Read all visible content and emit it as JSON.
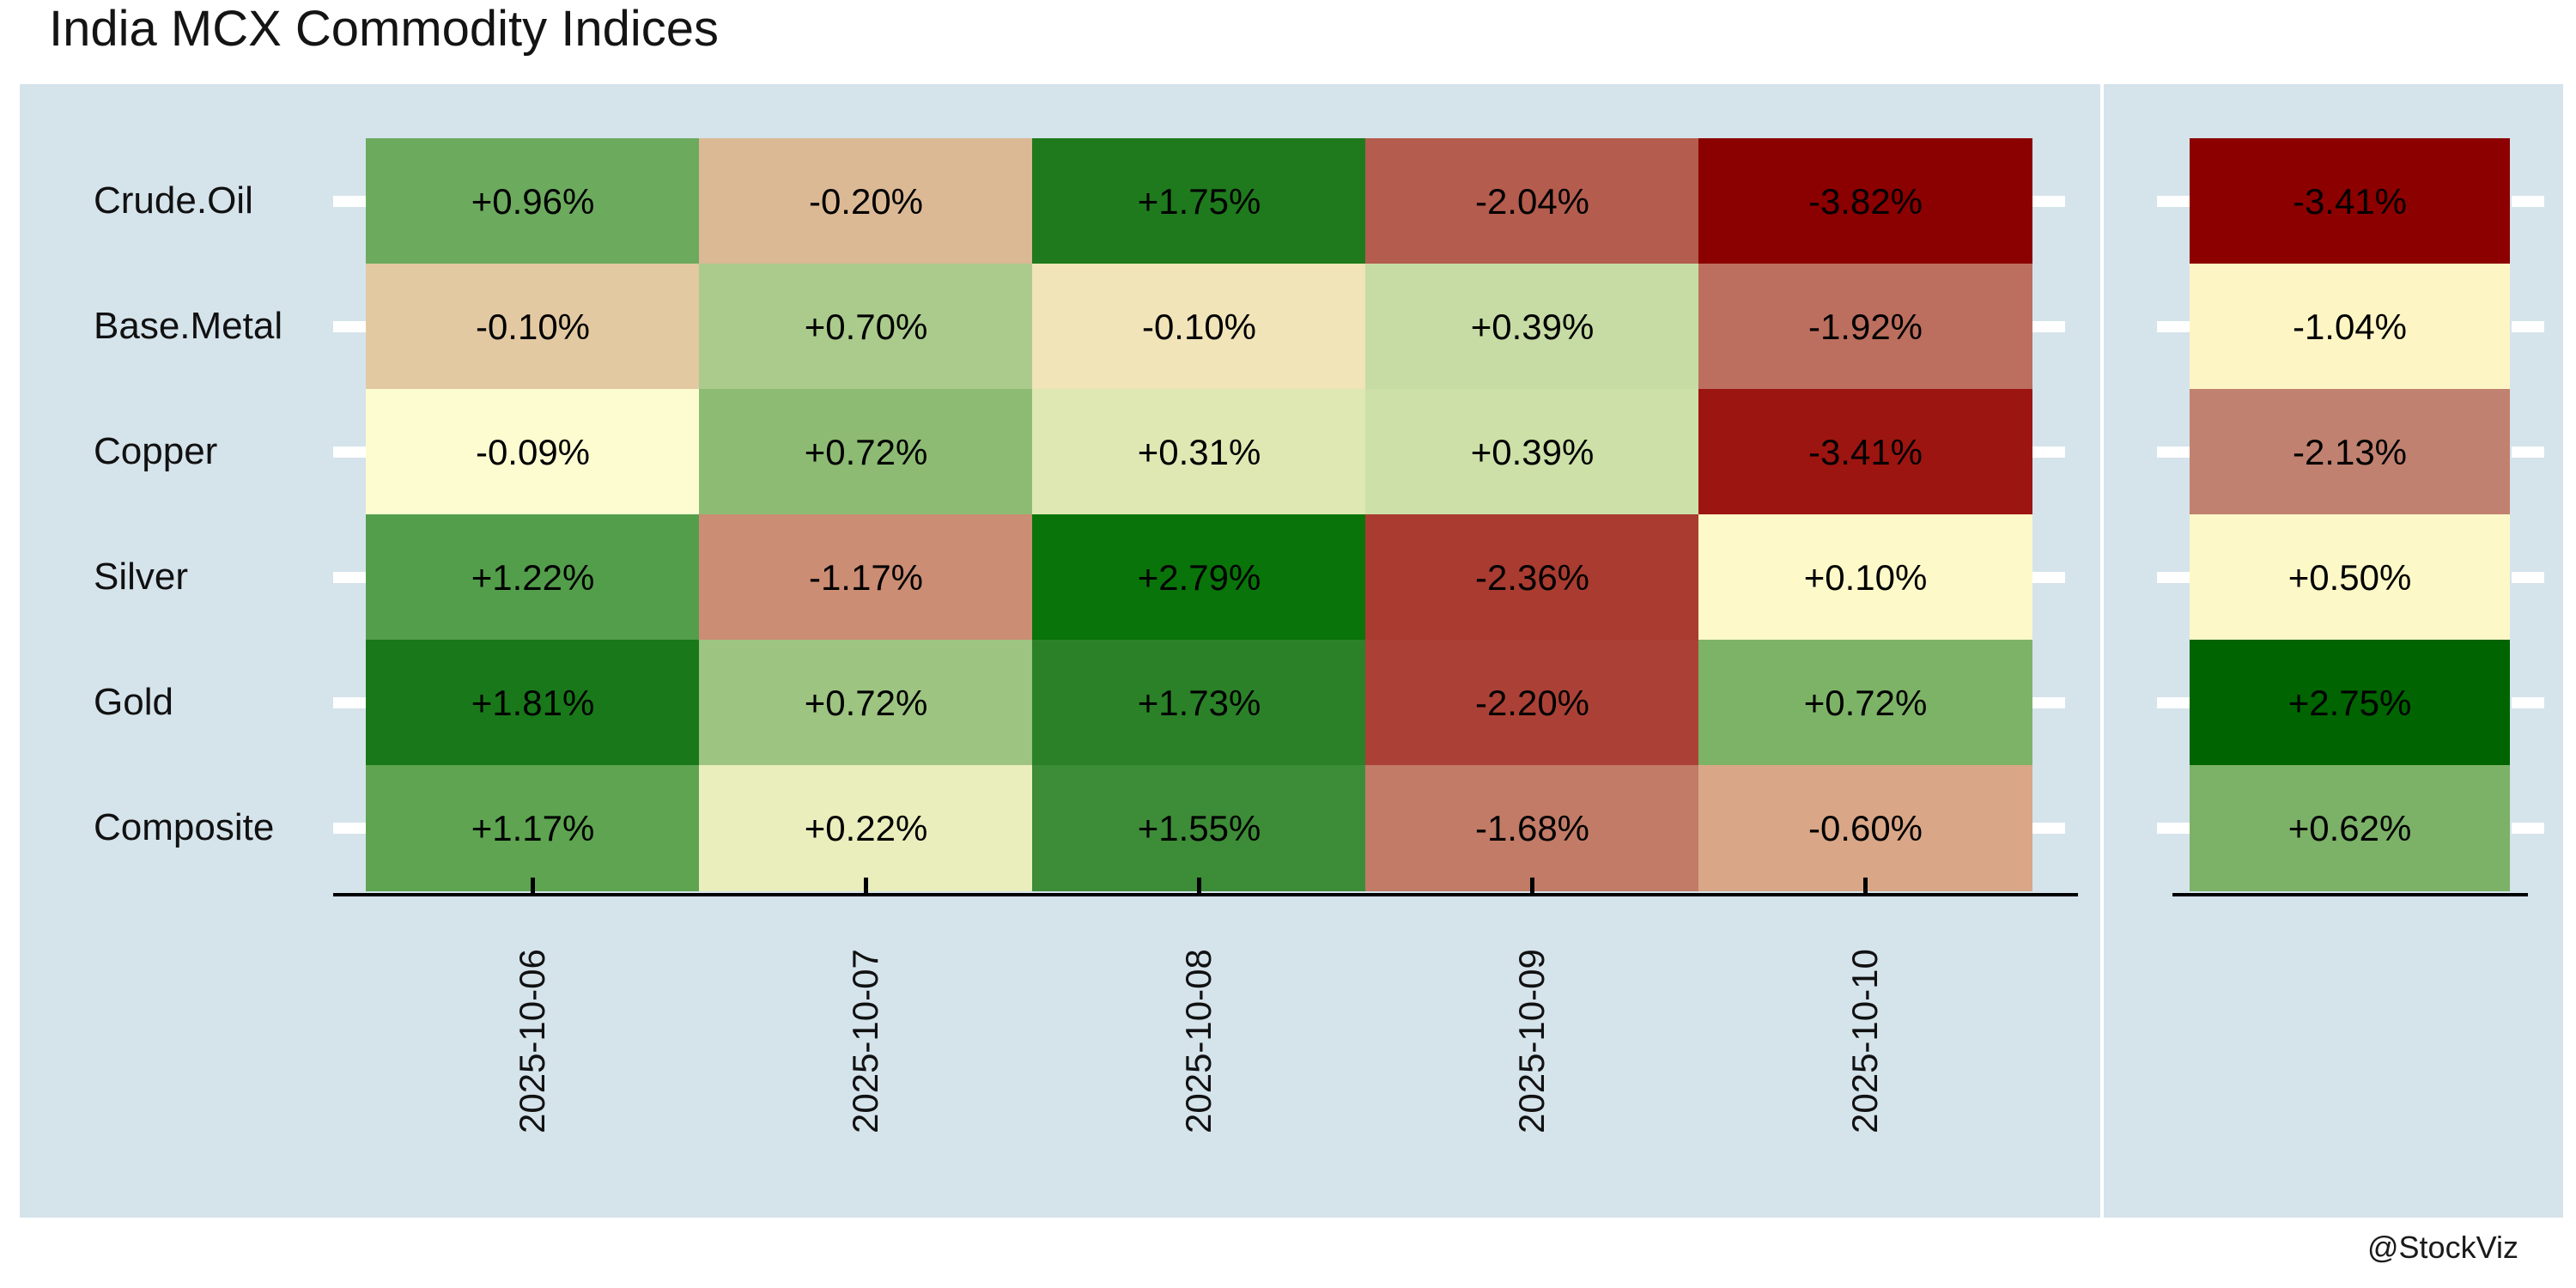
{
  "title": "India MCX Commodity Indices",
  "watermark": "@StockViz",
  "style": {
    "panel_background": "#d5e3eb",
    "axis_color": "#000000",
    "side_tick_color": "#ffffff",
    "text_color": "#111111"
  },
  "chart_data": {
    "type": "heatmap",
    "title": "India MCX Commodity Indices",
    "rows": [
      "Crude.Oil",
      "Base.Metal",
      "Copper",
      "Silver",
      "Gold",
      "Composite"
    ],
    "columns": [
      "2025-10-06",
      "2025-10-07",
      "2025-10-08",
      "2025-10-09",
      "2025-10-10"
    ],
    "value_format": "signed_percent_2dp",
    "colormap": "RdYlGn",
    "legend": "none",
    "values": [
      [
        0.96,
        -0.2,
        1.75,
        -2.04,
        -3.82
      ],
      [
        -0.1,
        0.7,
        -0.1,
        0.39,
        -1.92
      ],
      [
        -0.09,
        0.72,
        0.31,
        0.39,
        -3.41
      ],
      [
        1.22,
        -1.17,
        2.79,
        -2.36,
        0.1
      ],
      [
        1.81,
        0.72,
        1.73,
        -2.2,
        0.72
      ],
      [
        1.17,
        0.22,
        1.55,
        -1.68,
        -0.6
      ]
    ],
    "cell_colors": [
      [
        "#6caa5e",
        "#dcb995",
        "#1f7a1d",
        "#b45c4e",
        "#8b0000"
      ],
      [
        "#e3c9a2",
        "#aacb8c",
        "#f0e4b8",
        "#c6dca4",
        "#bc6f5f"
      ],
      [
        "#fdfcd1",
        "#8dbb73",
        "#dfe8b3",
        "#cce0a8",
        "#9d1510"
      ],
      [
        "#539e4b",
        "#cb8d73",
        "#097409",
        "#a93b30",
        "#fdf9c8"
      ],
      [
        "#197819",
        "#9dc480",
        "#2b8128",
        "#ab4136",
        "#7db366"
      ],
      [
        "#5ea451",
        "#e9eebc",
        "#3d8c37",
        "#c17b67",
        "#d9a787"
      ]
    ],
    "summary_column": {
      "values": [
        -3.41,
        -1.04,
        -2.13,
        0.5,
        2.75,
        0.62
      ],
      "colors": [
        "#8c0000",
        "#fdf5c3",
        "#c08170",
        "#fdf8c7",
        "#006400",
        "#7cb168"
      ]
    }
  }
}
